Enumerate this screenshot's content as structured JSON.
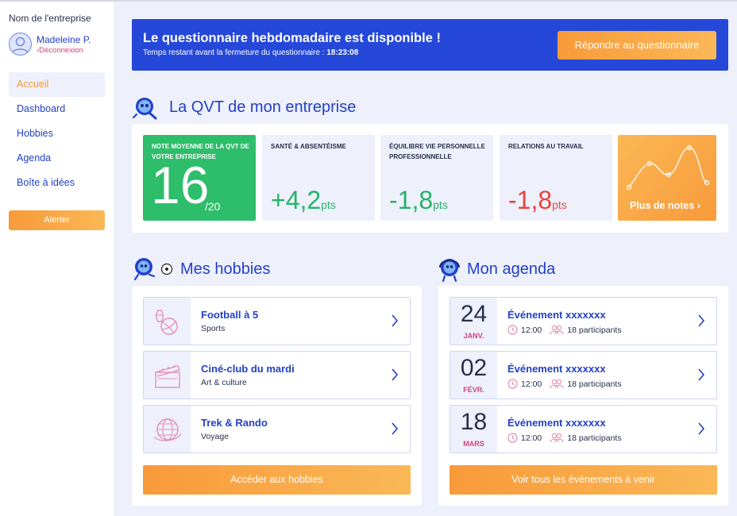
{
  "sidebar": {
    "company": "Nom de l'entreprise",
    "user_name": "Madeleine P.",
    "logout": "›Déconnexion",
    "nav": [
      {
        "label": "Accueil",
        "active": true
      },
      {
        "label": "Dashboard",
        "active": false
      },
      {
        "label": "Hobbies",
        "active": false
      },
      {
        "label": "Agenda",
        "active": false
      },
      {
        "label": "Boîte à idées",
        "active": false
      }
    ],
    "alert_label": "Alerter"
  },
  "banner": {
    "title": "Le questionnaire hebdomadaire est disponible !",
    "subtitle": "Temps restant avant la fermeture du questionnaire : ",
    "time_left": "18:23:08",
    "button": "Répondre au questionnaire"
  },
  "qvt": {
    "heading": "La QVT de mon entreprise",
    "main": {
      "label": "Note moyenne de la QVT de votre entreprise",
      "score": "16",
      "denom": "/20"
    },
    "tiles": [
      {
        "label": "Santé & absentéisme",
        "value": "+4,2",
        "unit": "pts",
        "trend": "positive"
      },
      {
        "label": "Équilibre vie personnelle professionnelle",
        "value": "-1,8",
        "unit": "pts",
        "trend": "positive"
      },
      {
        "label": "Relations au travail",
        "value": "-1,8",
        "unit": "pts",
        "trend": "negative"
      }
    ],
    "more_notes": "Plus de notes ›"
  },
  "hobbies": {
    "heading": "Mes hobbies",
    "items": [
      {
        "title": "Football à 5",
        "category": "Sports",
        "icon": "sports-icon"
      },
      {
        "title": "Ciné-club du mardi",
        "category": "Art & culture",
        "icon": "clapperboard-icon"
      },
      {
        "title": "Trek & Rando",
        "category": "Voyage",
        "icon": "globe-plane-icon"
      }
    ],
    "button": "Accéder aux hobbies"
  },
  "agenda": {
    "heading": "Mon agenda",
    "items": [
      {
        "day": "24",
        "month": "JANV.",
        "title": "Événement xxxxxxx",
        "time": "12:00",
        "participants": "18 participants"
      },
      {
        "day": "02",
        "month": "FÉVR.",
        "title": "Événement xxxxxxx",
        "time": "12:00",
        "participants": "18 participants"
      },
      {
        "day": "18",
        "month": "MARS",
        "title": "Événement xxxxxxx",
        "time": "12:00",
        "participants": "18 participants"
      }
    ],
    "button": "Voir tous les événements à venir"
  },
  "colors": {
    "primary": "#2340c8",
    "accent": "#f89a3a",
    "green": "#2ebd6b",
    "red": "#e8443c",
    "pink": "#d0417d",
    "background": "#eef0fb"
  }
}
